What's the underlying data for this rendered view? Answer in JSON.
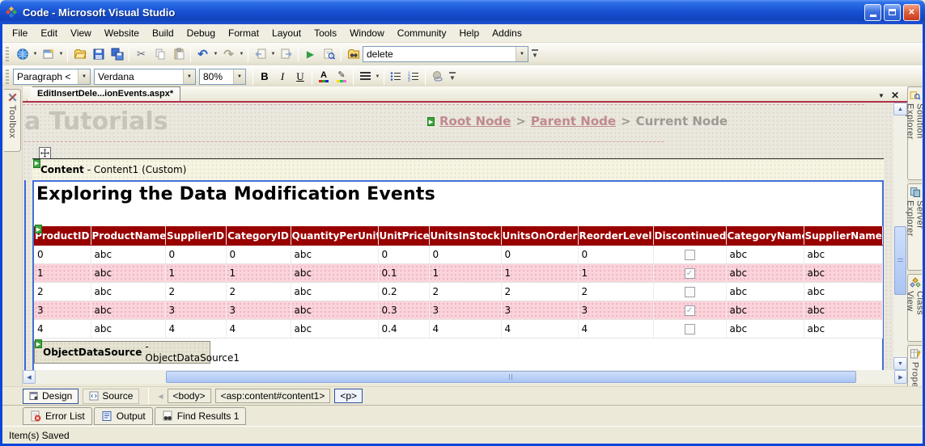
{
  "titlebar": {
    "title": "Code - Microsoft Visual Studio"
  },
  "menu": {
    "items": [
      "File",
      "Edit",
      "View",
      "Website",
      "Build",
      "Debug",
      "Format",
      "Layout",
      "Tools",
      "Window",
      "Community",
      "Help",
      "Addins"
    ]
  },
  "toolbar_main": {
    "search_value": "delete"
  },
  "toolbar_format": {
    "paragraph": "Paragraph <",
    "font": "Verdana",
    "size": "80%",
    "bold": "B",
    "italic": "I",
    "underline": "U",
    "color_letter": "A"
  },
  "tabs": {
    "document": "EditInsertDele...ionEvents.aspx*"
  },
  "side_left": {
    "toolbox": "Toolbox"
  },
  "side_right": {
    "tabs": [
      "Solution Explorer",
      "Server Explorer",
      "Class View",
      "Properties"
    ]
  },
  "designer": {
    "masthead_title": "a Tutorials",
    "breadcrumb": {
      "root": "Root Node",
      "parent": "Parent Node",
      "current": "Current Node",
      "sep": ">"
    },
    "content_label_bold": "Content",
    "content_label_rest": "- Content1 (Custom)",
    "page_heading": "Exploring the Data Modification Events",
    "datasource_label_bold": "ObjectDataSource",
    "datasource_label_rest": "- ObjectDataSource1"
  },
  "grid": {
    "columns": [
      "ProductID",
      "ProductName",
      "SupplierID",
      "CategoryID",
      "QuantityPerUnit",
      "UnitPrice",
      "UnitsInStock",
      "UnitsOnOrder",
      "ReorderLevel",
      "Discontinued",
      "CategoryName",
      "SupplierName"
    ],
    "rows": [
      {
        "values": [
          "0",
          "abc",
          "0",
          "0",
          "abc",
          "0",
          "0",
          "0",
          "0"
        ],
        "discontinued": false,
        "tail": [
          "abc",
          "abc"
        ]
      },
      {
        "values": [
          "1",
          "abc",
          "1",
          "1",
          "abc",
          "0.1",
          "1",
          "1",
          "1"
        ],
        "discontinued": true,
        "tail": [
          "abc",
          "abc"
        ]
      },
      {
        "values": [
          "2",
          "abc",
          "2",
          "2",
          "abc",
          "0.2",
          "2",
          "2",
          "2"
        ],
        "discontinued": false,
        "tail": [
          "abc",
          "abc"
        ]
      },
      {
        "values": [
          "3",
          "abc",
          "3",
          "3",
          "abc",
          "0.3",
          "3",
          "3",
          "3"
        ],
        "discontinued": true,
        "tail": [
          "abc",
          "abc"
        ]
      },
      {
        "values": [
          "4",
          "abc",
          "4",
          "4",
          "abc",
          "0.4",
          "4",
          "4",
          "4"
        ],
        "discontinued": false,
        "tail": [
          "abc",
          "abc"
        ]
      }
    ],
    "colors": {
      "header_bg": "#990000",
      "alt_row_bg": "#FBD3DA"
    }
  },
  "view_switch": {
    "design": "Design",
    "source": "Source",
    "tags": [
      "<body>",
      "<asp:content#content1>",
      "<p>"
    ]
  },
  "panels": {
    "tabs": [
      "Error List",
      "Output",
      "Find Results 1"
    ]
  },
  "status": {
    "text": "Item(s) Saved"
  },
  "icons": {
    "close": "✕",
    "dropdown": "▼",
    "check": "✓",
    "run": "▶",
    "undo": "↶",
    "redo": "↷",
    "cut": "✂",
    "pencil": "✎",
    "up": "▲",
    "down": "▼",
    "left": "◀",
    "right": "▶"
  }
}
